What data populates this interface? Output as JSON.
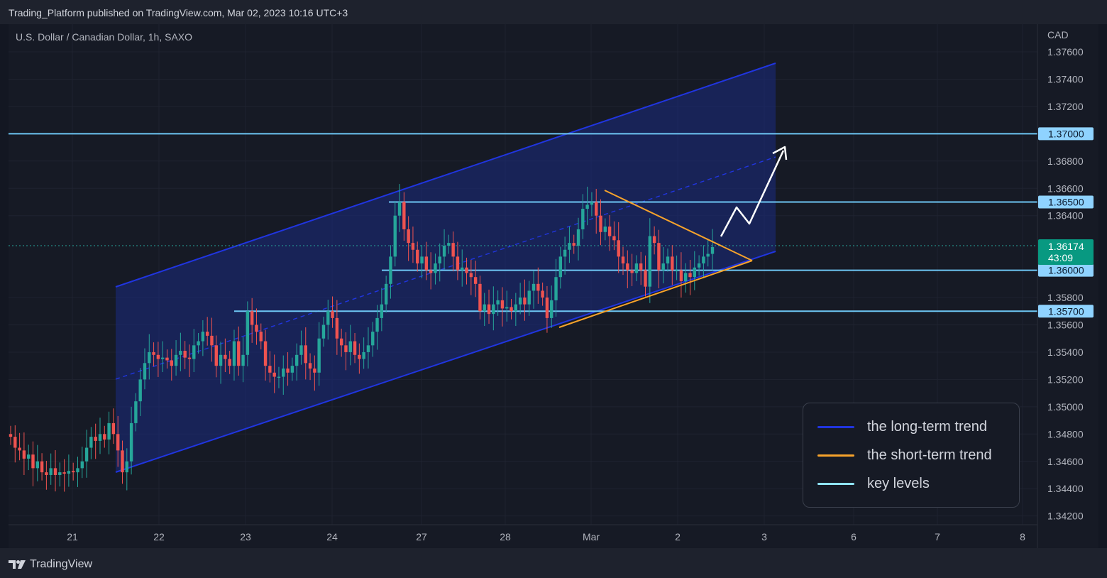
{
  "header": {
    "publisher": "Trading_Platform published on TradingView.com, Mar 02, 2023 10:16 UTC+3"
  },
  "symbol": {
    "title": "U.S. Dollar / Canadian Dollar, 1h, SAXO",
    "currency": "CAD"
  },
  "footer": {
    "brand": "TradingView",
    "logo_icon": "tradingview-logo-icon"
  },
  "colors": {
    "background": "#131722",
    "up": "#26a69a",
    "down": "#ef5350",
    "long_term_trend": "#1b33d8",
    "short_term_trend": "#f7a32b",
    "key_levels": "#6ec7f5",
    "channel_fill": "#1b2a7a",
    "forecast": "#ffffff"
  },
  "legend": {
    "items": [
      {
        "label": "the long-term trend",
        "color": "#2035e0"
      },
      {
        "label": "the short-term trend",
        "color": "#f7a32b"
      },
      {
        "label": "key levels",
        "color": "#8fe3ff"
      }
    ]
  },
  "chart_data": {
    "type": "candlestick",
    "title": "U.S. Dollar / Canadian Dollar, 1h, SAXO",
    "ylabel": "CAD",
    "ylim": [
      1.341,
      1.3775
    ],
    "y_ticks": [
      "1.37600",
      "1.37400",
      "1.37200",
      "1.36800",
      "1.36600",
      "1.36400",
      "1.35800",
      "1.35600",
      "1.35400",
      "1.35200",
      "1.35000",
      "1.34800",
      "1.34600",
      "1.34400",
      "1.34200"
    ],
    "x_ticks": [
      "21",
      "22",
      "23",
      "24",
      "27",
      "28",
      "Mar",
      "2",
      "3",
      "6",
      "7",
      "8"
    ],
    "grid": true,
    "key_levels": [
      1.37,
      1.365,
      1.36,
      1.357
    ],
    "key_level_labels": [
      "1.37000",
      "1.36500",
      "1.36000",
      "1.35700"
    ],
    "last_price": {
      "value": 1.36174,
      "label": "1.36174",
      "countdown": "43:09"
    },
    "closes": [
      1.3478,
      1.347,
      1.3468,
      1.3462,
      1.3465,
      1.3455,
      1.346,
      1.3452,
      1.345,
      1.3455,
      1.345,
      1.3452,
      1.3451,
      1.3453,
      1.3452,
      1.3455,
      1.346,
      1.347,
      1.3478,
      1.3475,
      1.348,
      1.3476,
      1.3488,
      1.348,
      1.3468,
      1.3452,
      1.346,
      1.3488,
      1.3504,
      1.352,
      1.3532,
      1.354,
      1.3538,
      1.3535,
      1.3536,
      1.3534,
      1.353,
      1.3538,
      1.3541,
      1.3536,
      1.3535,
      1.3545,
      1.3548,
      1.3555,
      1.3552,
      1.3545,
      1.353,
      1.3538,
      1.3535,
      1.353,
      1.3548,
      1.353,
      1.3538,
      1.357,
      1.356,
      1.3555,
      1.3548,
      1.353,
      1.3525,
      1.3522,
      1.3522,
      1.3528,
      1.3525,
      1.353,
      1.3538,
      1.3545,
      1.3532,
      1.3528,
      1.3525,
      1.355,
      1.356,
      1.357,
      1.3565,
      1.355,
      1.3545,
      1.354,
      1.3548,
      1.3538,
      1.3535,
      1.354,
      1.3545,
      1.3555,
      1.3565,
      1.3575,
      1.359,
      1.361,
      1.364,
      1.365,
      1.363,
      1.362,
      1.3615,
      1.3605,
      1.361,
      1.36,
      1.3598,
      1.3605,
      1.361,
      1.3618,
      1.362,
      1.361,
      1.36,
      1.3602,
      1.3598,
      1.3595,
      1.359,
      1.357,
      1.3575,
      1.3568,
      1.3575,
      1.3578,
      1.3572,
      1.3573,
      1.357,
      1.3575,
      1.358,
      1.3575,
      1.3585,
      1.359,
      1.3585,
      1.358,
      1.3565,
      1.3578,
      1.3595,
      1.361,
      1.3615,
      1.362,
      1.3618,
      1.363,
      1.3645,
      1.3648,
      1.365,
      1.364,
      1.3628,
      1.3632,
      1.3625,
      1.3622,
      1.361,
      1.3605,
      1.36,
      1.3598,
      1.3605,
      1.36,
      1.3588,
      1.3625,
      1.362,
      1.36,
      1.3605,
      1.361,
      1.36,
      1.36,
      1.3592,
      1.3598,
      1.3595,
      1.3602,
      1.3605,
      1.361,
      1.3612,
      1.3617
    ]
  }
}
